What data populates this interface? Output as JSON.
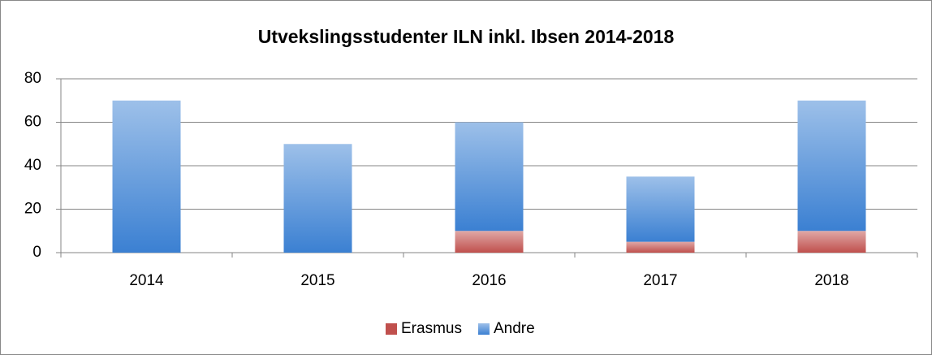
{
  "chart_data": {
    "type": "stacked_bar",
    "title": "Utvekslingsstudenter ILN inkl. Ibsen  2014-2018",
    "categories": [
      "2014",
      "2015",
      "2016",
      "2017",
      "2018"
    ],
    "series": [
      {
        "name": "Erasmus",
        "color": "#c0504d",
        "values": [
          0,
          0,
          10,
          5,
          10
        ]
      },
      {
        "name": "Andre",
        "color": "#3b80d2",
        "values": [
          70,
          50,
          50,
          30,
          60
        ]
      }
    ],
    "ylim": [
      0,
      80
    ],
    "yticks": [
      0,
      20,
      40,
      60,
      80
    ],
    "grid": true,
    "legend": "bottom"
  }
}
